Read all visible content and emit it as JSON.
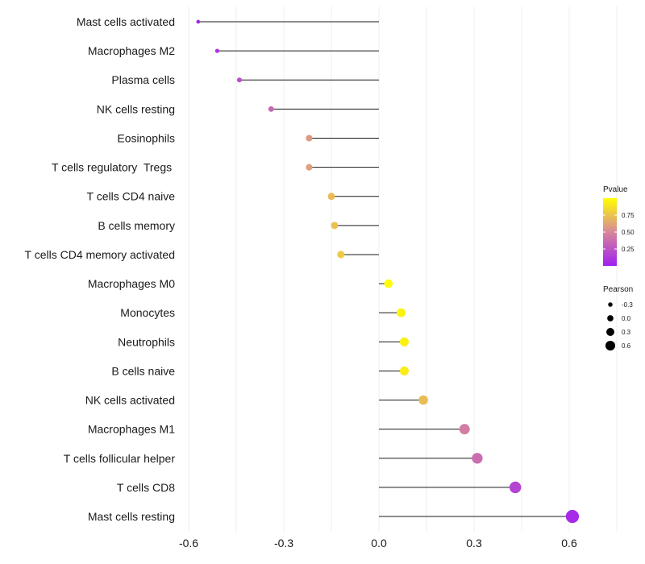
{
  "chart_data": {
    "type": "lollipop",
    "categories": [
      "Mast cells activated",
      "Macrophages M2",
      "Plasma cells",
      "NK cells resting",
      "Eosinophils",
      "T cells regulatory  Tregs ",
      "T cells CD4 naive",
      "B cells memory",
      "T cells CD4 memory activated",
      "Macrophages M0",
      "Monocytes",
      "Neutrophils",
      "B cells naive",
      "NK cells activated",
      "Macrophages M1",
      "T cells follicular helper",
      "T cells CD8",
      "Mast cells resting"
    ],
    "pearson": [
      -0.57,
      -0.51,
      -0.44,
      -0.34,
      -0.22,
      -0.22,
      -0.15,
      -0.14,
      -0.12,
      0.03,
      0.07,
      0.08,
      0.08,
      0.14,
      0.27,
      0.31,
      0.43,
      0.61
    ],
    "pvalue": [
      0.02,
      0.1,
      0.22,
      0.35,
      0.58,
      0.6,
      0.72,
      0.74,
      0.78,
      0.99,
      0.95,
      0.94,
      0.92,
      0.72,
      0.45,
      0.38,
      0.18,
      0.05
    ],
    "xlim": [
      -0.6,
      0.6
    ],
    "xticks": [
      -0.6,
      -0.3,
      0.0,
      0.3,
      0.6
    ],
    "xtick_labels": [
      "-0.6",
      "-0.3",
      "0.0",
      "0.3",
      "0.6"
    ],
    "color_legend": {
      "title": "Pvalue",
      "range": [
        0,
        1
      ],
      "ticks": [
        0.75,
        0.5,
        0.25
      ],
      "tick_labels": [
        "0.75",
        "0.50",
        "0.25"
      ],
      "low_color": "#a020f0",
      "mid_color": "#d7879a",
      "high_color": "#ffff00"
    },
    "size_legend": {
      "title": "Pearson",
      "values": [
        -0.3,
        0.0,
        0.3,
        0.6
      ],
      "labels": [
        "-0.3",
        "0.0",
        "0.3",
        "0.6"
      ]
    },
    "grid": true,
    "legend_position": "right"
  }
}
